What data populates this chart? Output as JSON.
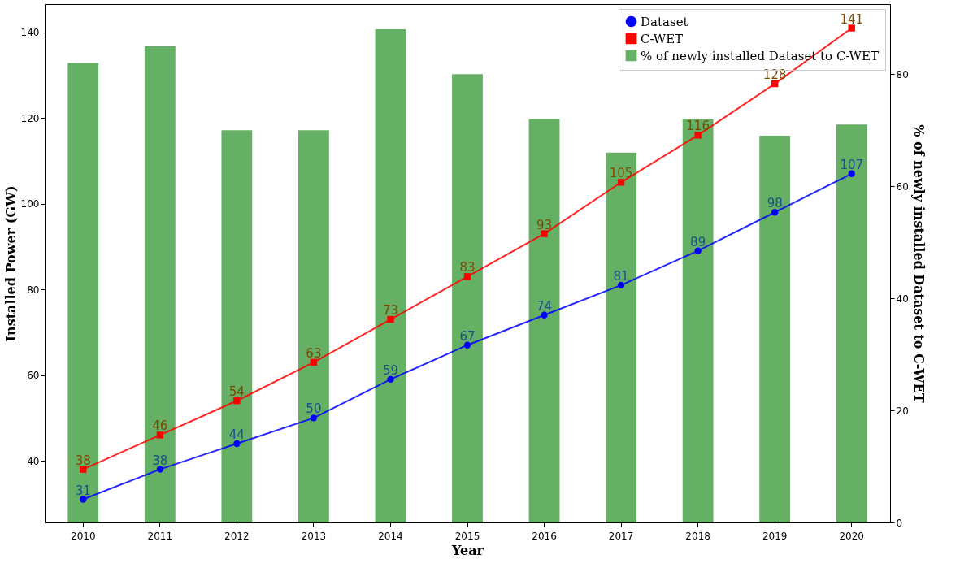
{
  "chart_data": {
    "type": "bar",
    "xlabel": "Year",
    "ylabel": "Installed Power (GW)",
    "y2label": "% of newly installed Dataset to C-WET",
    "categories": [
      "2010",
      "2011",
      "2012",
      "2013",
      "2014",
      "2015",
      "2016",
      "2017",
      "2018",
      "2019",
      "2020"
    ],
    "series": [
      {
        "name": "Dataset",
        "type": "line",
        "color": "#0000ff",
        "marker": "circle",
        "values": [
          31,
          38,
          44,
          50,
          59,
          67,
          74,
          81,
          89,
          98,
          107
        ],
        "value_labels": [
          "31",
          "38",
          "44",
          "50",
          "59",
          "67",
          "74",
          "81",
          "89",
          "98",
          "107"
        ]
      },
      {
        "name": "C-WET",
        "type": "line",
        "color": "#ff0000",
        "marker": "square",
        "values": [
          38,
          46,
          54,
          63,
          73,
          83,
          93,
          105,
          116,
          128,
          141
        ],
        "value_labels": [
          "38",
          "46",
          "54",
          "63",
          "73",
          "83",
          "93",
          "105",
          "116",
          "128",
          "141"
        ]
      },
      {
        "name": "% of newly installed Dataset to C-WET",
        "axis": "y2",
        "color": "#66b066",
        "values": [
          82,
          85,
          70,
          70,
          88,
          80,
          72,
          66,
          72,
          69,
          71
        ]
      }
    ],
    "ylim": [
      25.6,
      146.6
    ],
    "yticks": [
      40,
      60,
      80,
      100,
      120,
      140
    ],
    "y2lim": [
      0,
      92.5
    ],
    "y2ticks": [
      0,
      20,
      40,
      60,
      80
    ],
    "legend": "top right",
    "grid": false
  }
}
